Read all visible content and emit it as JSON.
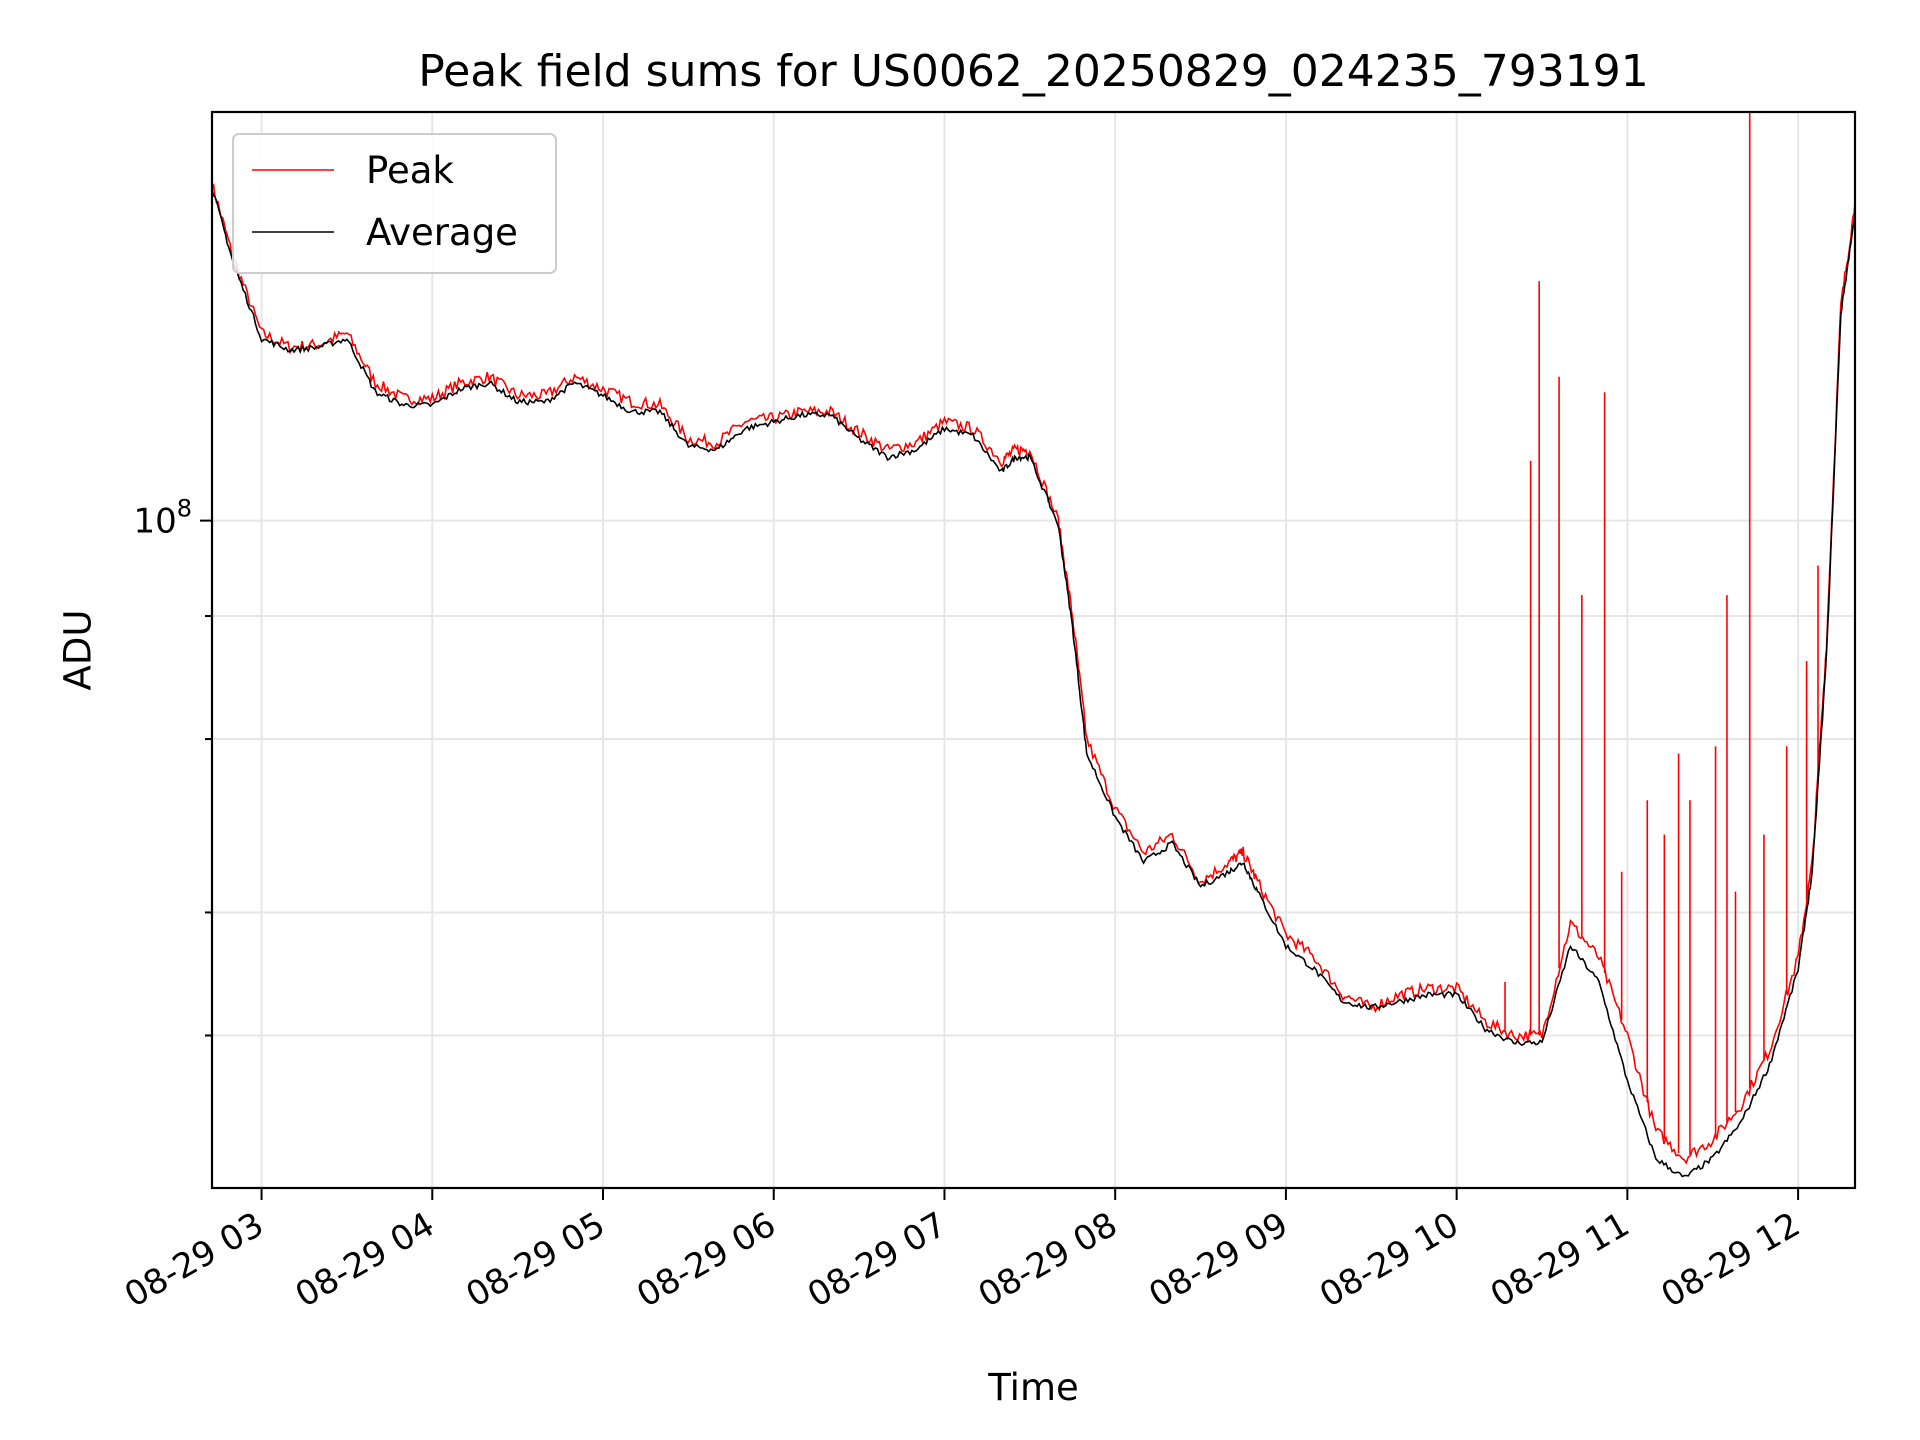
{
  "chart_data": {
    "type": "line",
    "title": "Peak field sums for US0062_20250829_024235_793191",
    "xlabel": "Time",
    "ylabel": "ADU",
    "x_axis": {
      "type": "time",
      "xlim": [
        "2025-08-29T02:42:35",
        "2025-08-29T12:20:00"
      ],
      "ticks": [
        "2025-08-29T03:00",
        "2025-08-29T04:00",
        "2025-08-29T05:00",
        "2025-08-29T06:00",
        "2025-08-29T07:00",
        "2025-08-29T08:00",
        "2025-08-29T09:00",
        "2025-08-29T10:00",
        "2025-08-29T11:00",
        "2025-08-29T12:00"
      ],
      "tick_labels": [
        "08-29 03",
        "08-29 04",
        "08-29 05",
        "08-29 06",
        "08-29 07",
        "08-29 08",
        "08-29 09",
        "08-29 10",
        "08-29 11",
        "08-29 12"
      ]
    },
    "y_axis": {
      "scale": "log",
      "ylim": [
        21000000,
        260000000
      ],
      "major_ticks": [
        100000000
      ],
      "major_tick_labels": [
        "10^8"
      ],
      "minor_ticks": [
        30000000,
        40000000,
        60000000,
        80000000
      ]
    },
    "grid": true,
    "legend": {
      "location": "upper-left",
      "entries": [
        "Peak",
        "Average"
      ]
    },
    "series": [
      {
        "name": "Peak",
        "color": "#ff0000",
        "x": [
          "2025-08-29T02:42:35",
          "2025-08-29T02:50",
          "2025-08-29T03:00",
          "2025-08-29T03:10",
          "2025-08-29T03:20",
          "2025-08-29T03:30",
          "2025-08-29T03:40",
          "2025-08-29T03:50",
          "2025-08-29T04:00",
          "2025-08-29T04:10",
          "2025-08-29T04:20",
          "2025-08-29T04:30",
          "2025-08-29T04:40",
          "2025-08-29T04:50",
          "2025-08-29T05:00",
          "2025-08-29T05:10",
          "2025-08-29T05:20",
          "2025-08-29T05:30",
          "2025-08-29T05:40",
          "2025-08-29T05:50",
          "2025-08-29T06:00",
          "2025-08-29T06:10",
          "2025-08-29T06:20",
          "2025-08-29T06:30",
          "2025-08-29T06:40",
          "2025-08-29T06:50",
          "2025-08-29T07:00",
          "2025-08-29T07:10",
          "2025-08-29T07:20",
          "2025-08-29T07:25",
          "2025-08-29T07:30",
          "2025-08-29T07:40",
          "2025-08-29T07:45",
          "2025-08-29T07:50",
          "2025-08-29T08:00",
          "2025-08-29T08:10",
          "2025-08-29T08:20",
          "2025-08-29T08:30",
          "2025-08-29T08:40",
          "2025-08-29T08:45",
          "2025-08-29T08:50",
          "2025-08-29T09:00",
          "2025-08-29T09:10",
          "2025-08-29T09:20",
          "2025-08-29T09:30",
          "2025-08-29T09:40",
          "2025-08-29T09:50",
          "2025-08-29T10:00",
          "2025-08-29T10:10",
          "2025-08-29T10:20",
          "2025-08-29T10:30",
          "2025-08-29T10:40",
          "2025-08-29T10:50",
          "2025-08-29T11:00",
          "2025-08-29T11:10",
          "2025-08-29T11:20",
          "2025-08-29T11:30",
          "2025-08-29T11:40",
          "2025-08-29T11:50",
          "2025-08-29T12:00",
          "2025-08-29T12:05",
          "2025-08-29T12:10",
          "2025-08-29T12:15",
          "2025-08-29T12:20"
        ],
        "y": [
          220000000,
          185000000,
          155000000,
          150000000,
          151000000,
          155000000,
          138000000,
          133000000,
          133000000,
          138000000,
          140000000,
          134000000,
          134000000,
          140000000,
          136000000,
          132000000,
          131000000,
          121000000,
          120000000,
          126000000,
          127000000,
          129000000,
          129000000,
          123000000,
          118000000,
          120000000,
          126000000,
          124000000,
          115000000,
          118000000,
          118000000,
          100000000,
          80000000,
          60000000,
          51000000,
          46000000,
          48000000,
          43000000,
          45000000,
          46000000,
          43000000,
          38000000,
          36000000,
          33000000,
          32000000,
          33000000,
          33500000,
          33500000,
          31000000,
          30000000,
          30000000,
          39000000,
          36000000,
          30000000,
          24000000,
          22500000,
          23500000,
          25500000,
          29000000,
          36000000,
          45000000,
          75000000,
          165000000,
          210000000
        ]
      },
      {
        "name": "Average",
        "color": "#000000",
        "x": [
          "2025-08-29T02:42:35",
          "2025-08-29T02:50",
          "2025-08-29T03:00",
          "2025-08-29T03:10",
          "2025-08-29T03:20",
          "2025-08-29T03:30",
          "2025-08-29T03:40",
          "2025-08-29T03:50",
          "2025-08-29T04:00",
          "2025-08-29T04:10",
          "2025-08-29T04:20",
          "2025-08-29T04:30",
          "2025-08-29T04:40",
          "2025-08-29T04:50",
          "2025-08-29T05:00",
          "2025-08-29T05:10",
          "2025-08-29T05:20",
          "2025-08-29T05:30",
          "2025-08-29T05:40",
          "2025-08-29T05:50",
          "2025-08-29T06:00",
          "2025-08-29T06:10",
          "2025-08-29T06:20",
          "2025-08-29T06:30",
          "2025-08-29T06:40",
          "2025-08-29T06:50",
          "2025-08-29T07:00",
          "2025-08-29T07:10",
          "2025-08-29T07:20",
          "2025-08-29T07:25",
          "2025-08-29T07:30",
          "2025-08-29T07:40",
          "2025-08-29T07:45",
          "2025-08-29T07:50",
          "2025-08-29T08:00",
          "2025-08-29T08:10",
          "2025-08-29T08:20",
          "2025-08-29T08:30",
          "2025-08-29T08:40",
          "2025-08-29T08:45",
          "2025-08-29T08:50",
          "2025-08-29T09:00",
          "2025-08-29T09:10",
          "2025-08-29T09:20",
          "2025-08-29T09:30",
          "2025-08-29T09:40",
          "2025-08-29T09:50",
          "2025-08-29T10:00",
          "2025-08-29T10:10",
          "2025-08-29T10:20",
          "2025-08-29T10:30",
          "2025-08-29T10:40",
          "2025-08-29T10:50",
          "2025-08-29T11:00",
          "2025-08-29T11:10",
          "2025-08-29T11:20",
          "2025-08-29T11:30",
          "2025-08-29T11:40",
          "2025-08-29T11:50",
          "2025-08-29T12:00",
          "2025-08-29T12:05",
          "2025-08-29T12:10",
          "2025-08-29T12:15",
          "2025-08-29T12:20"
        ],
        "y": [
          218000000,
          183000000,
          153000000,
          149000000,
          150000000,
          153000000,
          135000000,
          131000000,
          131000000,
          136000000,
          138000000,
          132000000,
          132000000,
          138000000,
          134000000,
          129000000,
          129000000,
          119000000,
          118000000,
          124000000,
          126000000,
          128000000,
          128000000,
          121000000,
          116000000,
          118000000,
          124000000,
          122000000,
          112000000,
          116000000,
          116000000,
          99000000,
          78000000,
          58000000,
          50000000,
          45000000,
          47000000,
          42500000,
          44000000,
          45000000,
          42000000,
          37000000,
          35000000,
          32500000,
          32000000,
          32500000,
          33000000,
          33000000,
          30500000,
          29500000,
          29500000,
          37000000,
          34000000,
          27000000,
          22500000,
          21500000,
          22500000,
          24500000,
          28000000,
          35000000,
          44000000,
          73000000,
          162000000,
          205000000
        ]
      }
    ],
    "peak_spikes": {
      "x": [
        "2025-08-29T10:17",
        "2025-08-29T10:26",
        "2025-08-29T10:29",
        "2025-08-29T10:36",
        "2025-08-29T10:44",
        "2025-08-29T10:52",
        "2025-08-29T10:58",
        "2025-08-29T11:07",
        "2025-08-29T11:13",
        "2025-08-29T11:18",
        "2025-08-29T11:22",
        "2025-08-29T11:31",
        "2025-08-29T11:35",
        "2025-08-29T11:38",
        "2025-08-29T11:43",
        "2025-08-29T11:48",
        "2025-08-29T11:56",
        "2025-08-29T12:03",
        "2025-08-29T12:07"
      ],
      "y": [
        34000000,
        115000000,
        175000000,
        140000000,
        84000000,
        135000000,
        44000000,
        52000000,
        48000000,
        58000000,
        52000000,
        59000000,
        84000000,
        42000000,
        260000000,
        48000000,
        59000000,
        72000000,
        90000000
      ]
    }
  }
}
